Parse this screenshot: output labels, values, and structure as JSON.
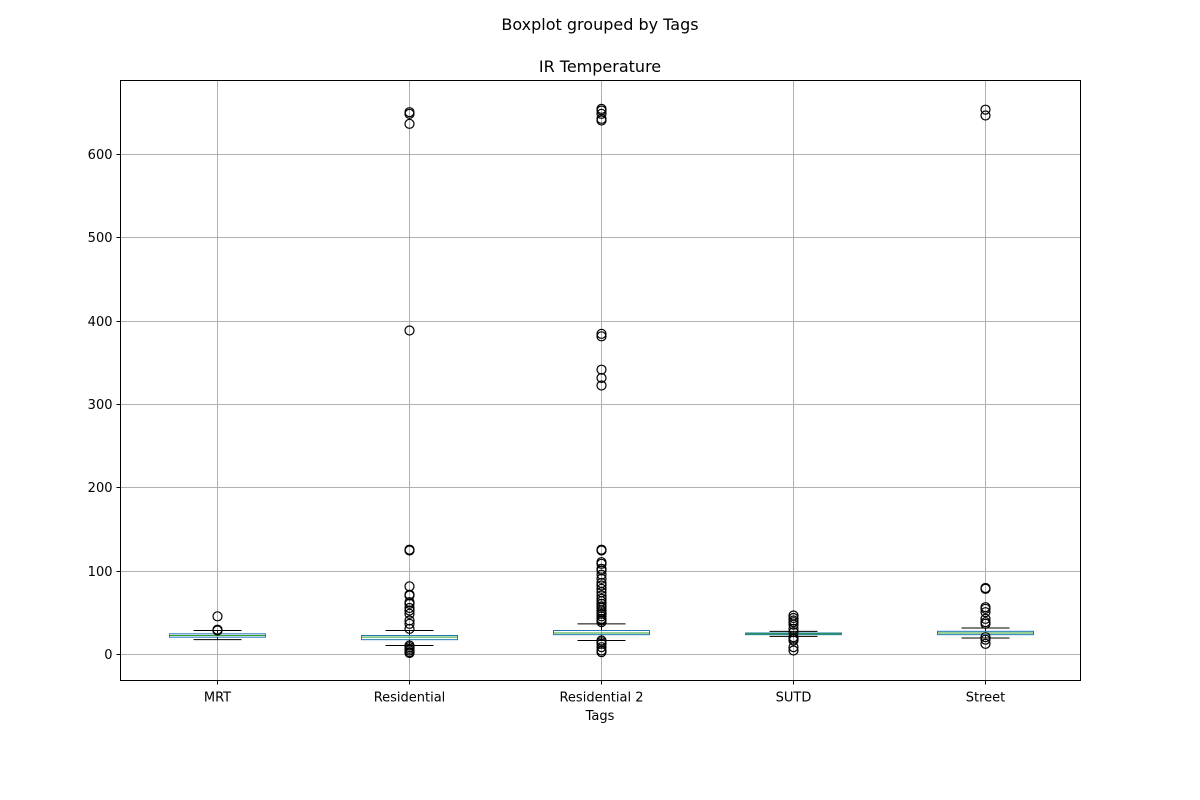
{
  "chart_data": {
    "type": "boxplot",
    "suptitle": "Boxplot grouped by Tags",
    "title": "IR Temperature",
    "xlabel": "Tags",
    "ylabel": "",
    "ylim": [
      -32,
      688
    ],
    "yticks": [
      0,
      100,
      200,
      300,
      400,
      500,
      600
    ],
    "grid": true,
    "colors": {
      "box": "#1f77b4",
      "median": "#2ca02c",
      "whisker": "#000000",
      "flier": "#000000",
      "grid": "#b0b0b0"
    },
    "categories": [
      "MRT",
      "Residential",
      "Residential 2",
      "SUTD",
      "Street"
    ],
    "boxes": [
      {
        "name": "MRT",
        "whislo": 17,
        "q1": 20,
        "med": 22,
        "q3": 24,
        "whishi": 28,
        "fliers": [
          45,
          29,
          28
        ]
      },
      {
        "name": "Residential",
        "whislo": 10,
        "q1": 17,
        "med": 20,
        "q3": 22,
        "whishi": 28,
        "fliers": [
          650,
          648,
          636,
          388,
          125,
          124,
          81,
          71,
          70,
          62,
          60,
          55,
          52,
          48,
          40,
          36,
          30,
          10,
          8,
          6,
          4,
          2,
          1
        ]
      },
      {
        "name": "Residential 2",
        "whislo": 16,
        "q1": 23,
        "med": 25,
        "q3": 28,
        "whishi": 36,
        "fliers": [
          654,
          652,
          648,
          642,
          640,
          384,
          381,
          341,
          331,
          322,
          125,
          124,
          110,
          108,
          102,
          100,
          95,
          90,
          85,
          82,
          78,
          74,
          70,
          66,
          63,
          60,
          57,
          55,
          52,
          50,
          48,
          45,
          42,
          40,
          38,
          16,
          14,
          12,
          8,
          4,
          2
        ]
      },
      {
        "name": "SUTD",
        "whislo": 21,
        "q1": 23,
        "med": 24,
        "q3": 25,
        "whishi": 27,
        "fliers": [
          46,
          43,
          40,
          38,
          35,
          30,
          26,
          20,
          18,
          16,
          8,
          4
        ]
      },
      {
        "name": "Street",
        "whislo": 19,
        "q1": 23,
        "med": 25,
        "q3": 27,
        "whishi": 31,
        "fliers": [
          653,
          646,
          79,
          78,
          56,
          54,
          50,
          42,
          38,
          36,
          20,
          17,
          12
        ]
      }
    ]
  }
}
